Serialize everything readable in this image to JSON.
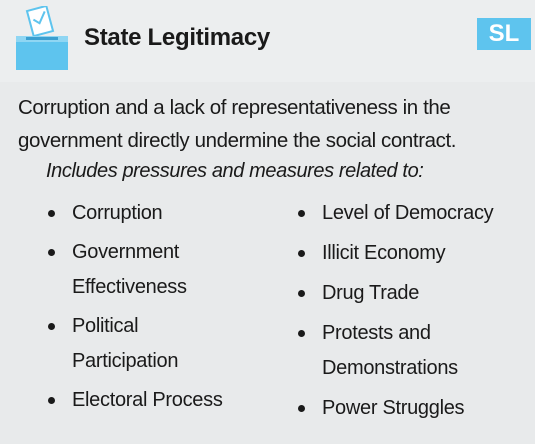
{
  "header": {
    "title": "State Legitimacy",
    "badge": "SL"
  },
  "description": "Corruption and a lack of representativeness in the government directly undermine the social contract.",
  "intro": "Includes pressures and measures related to:",
  "columns": [
    [
      "Corruption",
      "Government Effectiveness",
      "Political Participation",
      "Electoral Process"
    ],
    [
      "Level of Democracy",
      "Illicit Economy",
      "Drug Trade",
      "Protests and Demonstrations",
      "Power Struggles"
    ]
  ]
}
